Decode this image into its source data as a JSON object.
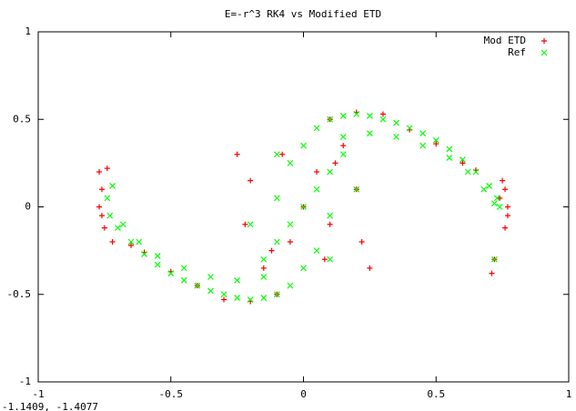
{
  "chart_data": {
    "type": "scatter",
    "title": "E=-r^3 RK4 vs Modified ETD",
    "coordinates": "-1.1409, -1.4077",
    "xlim": [
      -1,
      1
    ],
    "ylim": [
      -1,
      1
    ],
    "xticks": [
      -1,
      -0.5,
      0,
      0.5,
      1
    ],
    "yticks": [
      -1,
      -0.5,
      0,
      0.5,
      1
    ],
    "legend": "top-right",
    "series": [
      {
        "name": "Mod ETD",
        "color": "#ff0000",
        "marker": "plus",
        "x": [
          0.77,
          0.76,
          0.77,
          0.76,
          0.75,
          0.71,
          0.72,
          0.74,
          0.6,
          0.4,
          0.2,
          0.1,
          0.3,
          0.5,
          0.65,
          0.25,
          0.22,
          0.2,
          0.15,
          0.1,
          -0.77,
          -0.76,
          -0.77,
          -0.76,
          -0.75,
          -0.74,
          -0.72,
          -0.6,
          -0.4,
          -0.2,
          -0.1,
          -0.3,
          -0.5,
          -0.65,
          -0.25,
          -0.2,
          -0.22,
          -0.15,
          0,
          0.05,
          -0.05,
          0.12,
          -0.12,
          0.08,
          -0.08
        ],
        "y": [
          0.0,
          0.1,
          -0.05,
          -0.12,
          0.15,
          -0.38,
          -0.3,
          0.05,
          0.25,
          0.44,
          0.54,
          0.5,
          0.53,
          0.36,
          0.21,
          -0.35,
          -0.2,
          0.1,
          0.35,
          -0.1,
          0.0,
          0.1,
          0.2,
          -0.05,
          -0.12,
          0.22,
          -0.2,
          -0.26,
          -0.45,
          -0.54,
          -0.5,
          -0.53,
          -0.37,
          -0.22,
          0.3,
          0.15,
          -0.1,
          -0.35,
          0.0,
          0.2,
          -0.2,
          0.25,
          -0.25,
          -0.3,
          0.3
        ]
      },
      {
        "name": "Ref",
        "color": "#00ff00",
        "marker": "cross",
        "x": [
          0.05,
          0.1,
          0.15,
          0.2,
          0.25,
          0.3,
          0.35,
          0.4,
          0.45,
          0.5,
          0.55,
          0.6,
          0.65,
          0.7,
          0.73,
          0.74,
          0.15,
          0.25,
          0.35,
          0.45,
          0.55,
          0.62,
          0.68,
          0.72,
          0,
          0.05,
          0.1,
          0.1,
          0.15,
          0.05,
          0.2,
          0,
          0.1,
          0.72,
          -0.05,
          -0.1,
          -0.15,
          -0.2,
          -0.25,
          -0.3,
          -0.35,
          -0.4,
          -0.45,
          -0.5,
          -0.55,
          -0.6,
          -0.65,
          -0.7,
          -0.73,
          -0.74,
          -0.15,
          -0.25,
          -0.35,
          -0.45,
          -0.55,
          -0.62,
          -0.68,
          -0.72,
          -0.05,
          -0.1,
          -0.1,
          -0.15,
          -0.05,
          -0.2,
          0,
          -0.1
        ],
        "y": [
          0.45,
          0.5,
          0.52,
          0.53,
          0.52,
          0.5,
          0.48,
          0.45,
          0.42,
          0.38,
          0.33,
          0.27,
          0.2,
          0.12,
          0.05,
          0.0,
          0.4,
          0.42,
          0.4,
          0.35,
          0.28,
          0.2,
          0.1,
          0.02,
          0,
          0.1,
          0.2,
          -0.05,
          0.3,
          -0.25,
          0.1,
          0.35,
          -0.3,
          -0.3,
          -0.45,
          -0.5,
          -0.52,
          -0.53,
          -0.52,
          -0.5,
          -0.48,
          -0.45,
          -0.42,
          -0.38,
          -0.33,
          -0.27,
          -0.2,
          -0.12,
          -0.05,
          0.05,
          -0.4,
          -0.42,
          -0.4,
          -0.35,
          -0.28,
          -0.2,
          -0.1,
          0.12,
          -0.1,
          -0.2,
          0.05,
          -0.3,
          0.25,
          -0.1,
          -0.35,
          0.3
        ]
      }
    ]
  }
}
